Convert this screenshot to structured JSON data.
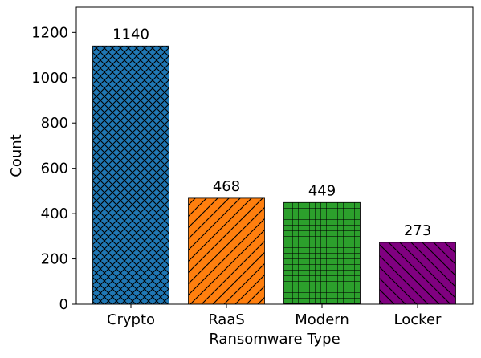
{
  "chart_data": {
    "type": "bar",
    "title": "",
    "xlabel": "Ransomware Type",
    "ylabel": "Count",
    "categories": [
      "Crypto",
      "RaaS",
      "Modern",
      "Locker"
    ],
    "values": [
      1140,
      468,
      449,
      273
    ],
    "ylim": [
      0,
      1311
    ],
    "yticks": [
      0,
      200,
      400,
      600,
      800,
      1000,
      1200
    ],
    "grid": false,
    "legend": "none",
    "bar_colors": [
      "#1f77b4",
      "#ff7f0e",
      "#2ca02c",
      "#800080"
    ],
    "bar_hatches": [
      "cross-diagonal",
      "forward-diagonal",
      "grid",
      "back-diagonal"
    ],
    "data_labels": [
      "1140",
      "468",
      "449",
      "273"
    ]
  }
}
